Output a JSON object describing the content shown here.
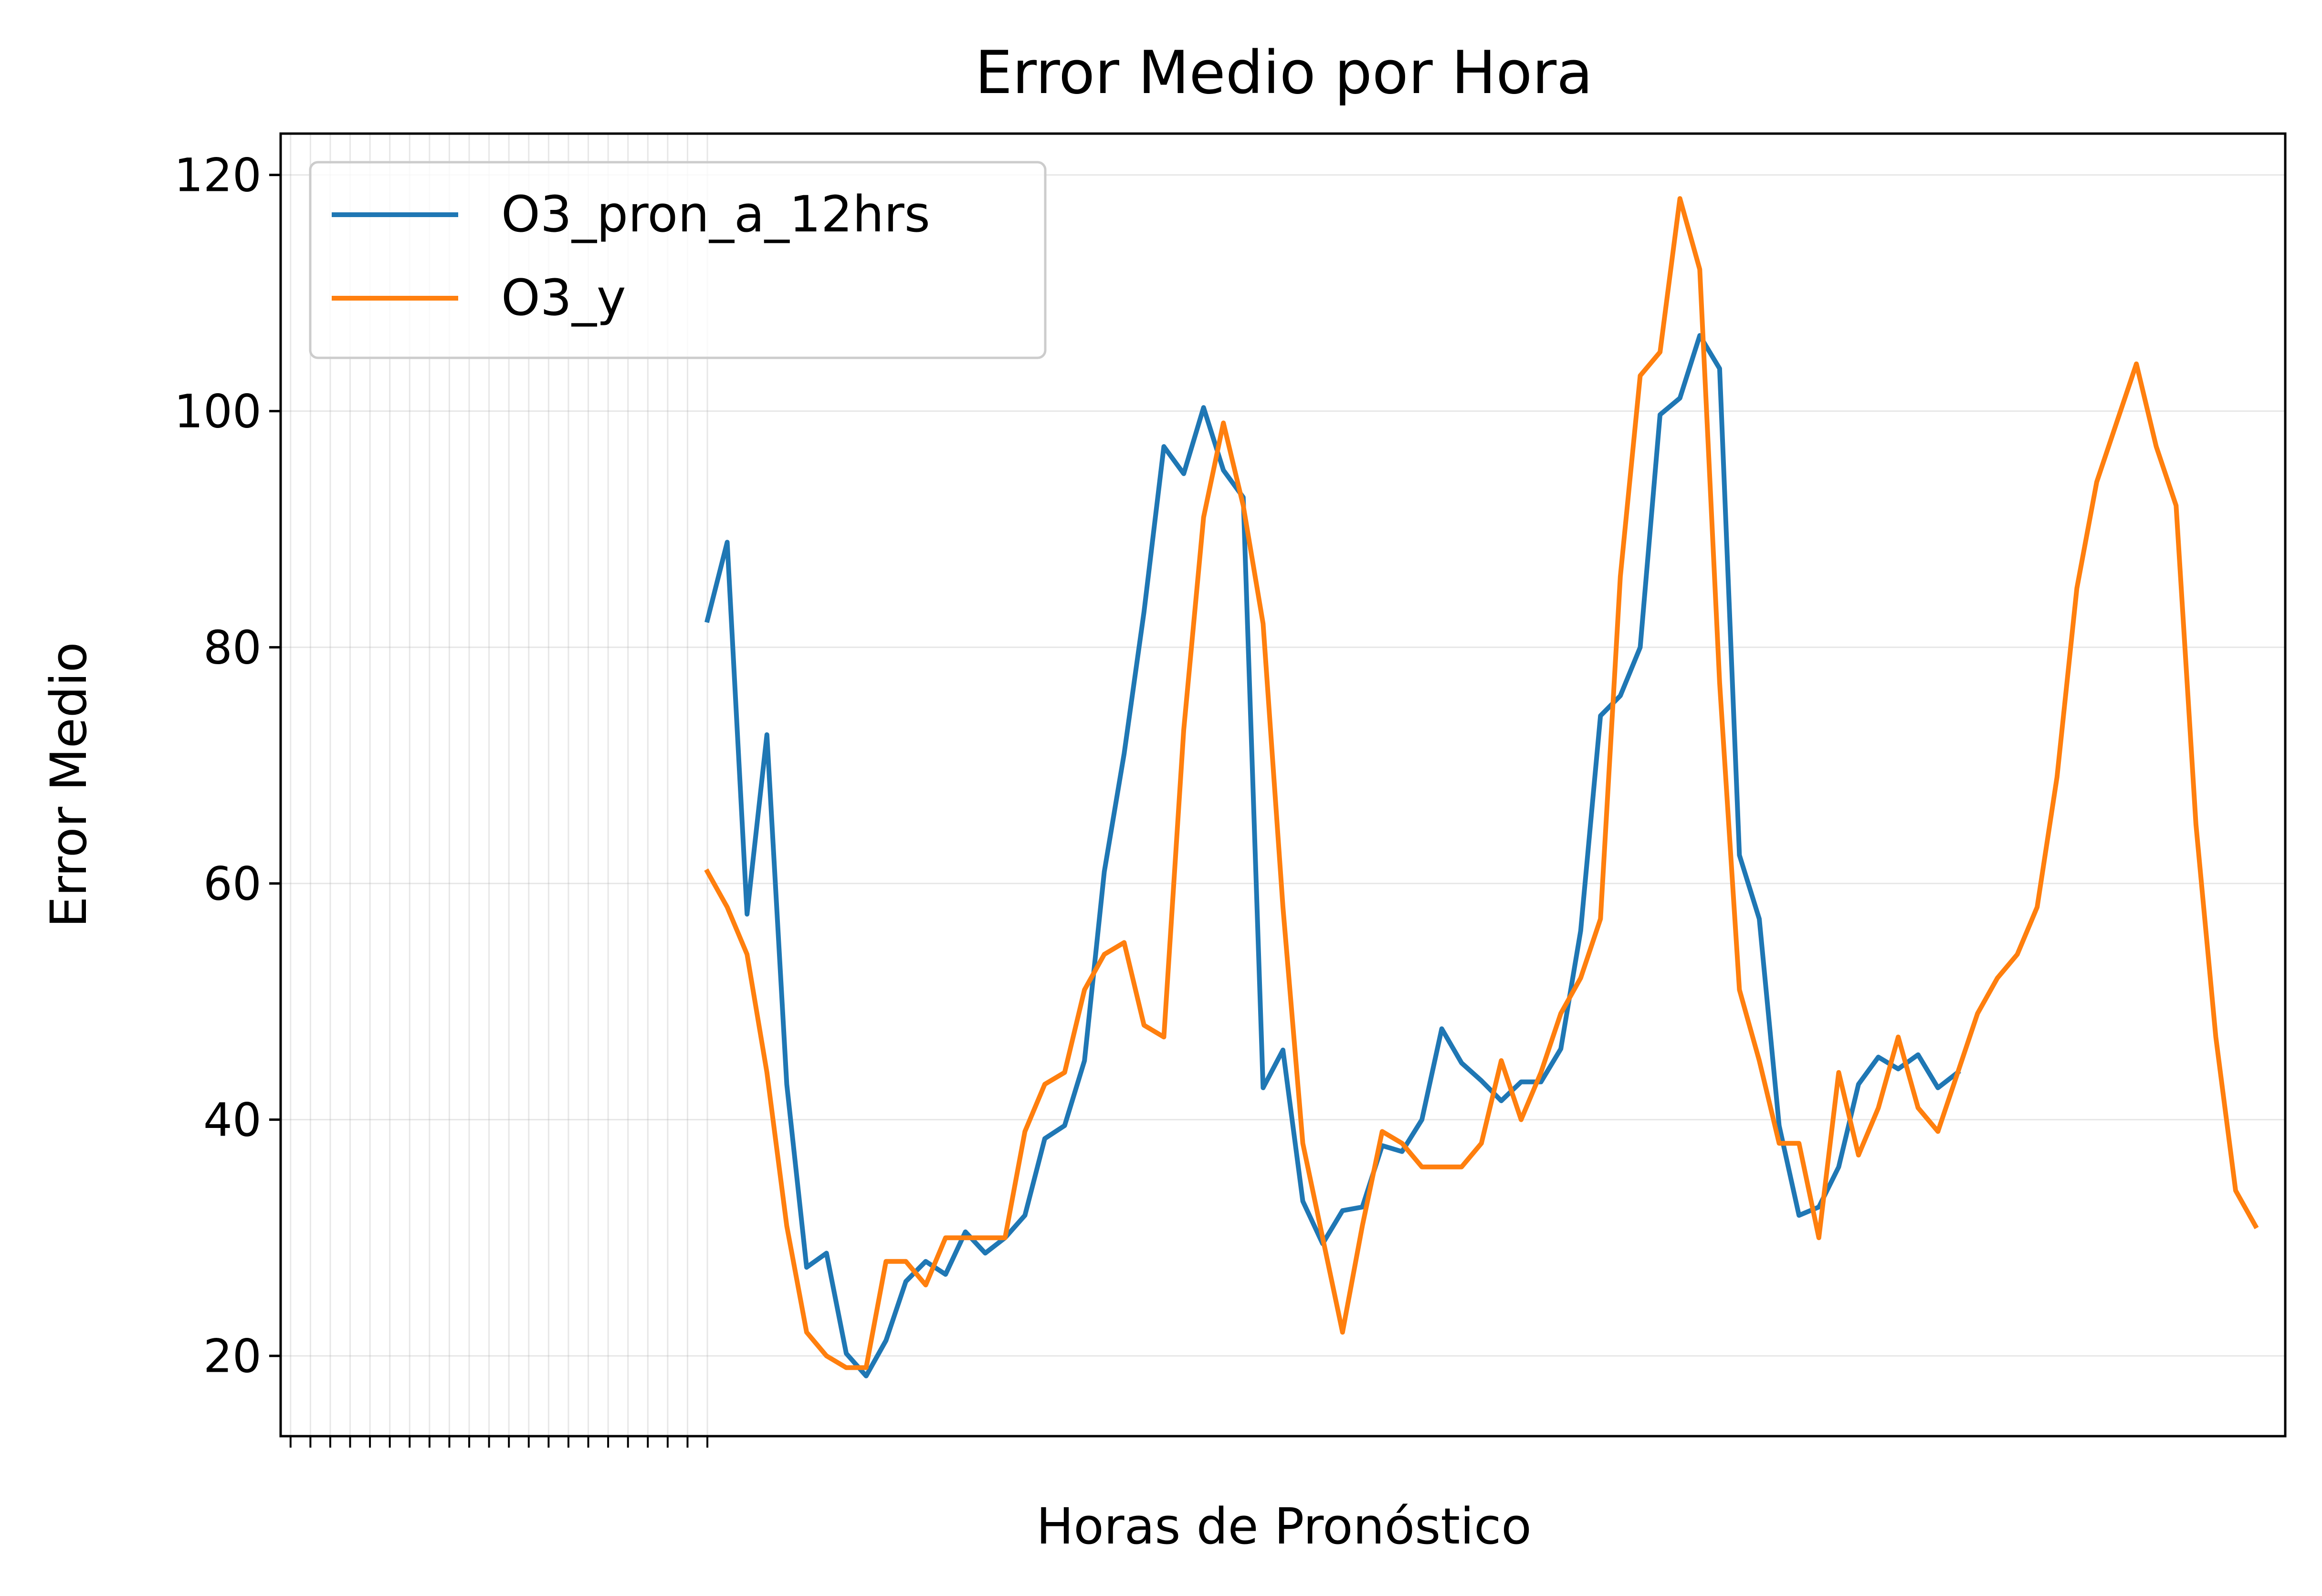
{
  "chart_data": {
    "type": "line",
    "title": "Error Medio por Hora",
    "xlabel": "Horas de Pronóstico",
    "ylabel": "Error Medio",
    "xlim": [
      -21.5,
      79.5
    ],
    "ylim": [
      13.2,
      123.5
    ],
    "yticks": [
      20,
      40,
      60,
      80,
      100,
      120
    ],
    "grid": true,
    "legend_position": "upper-left",
    "series": [
      {
        "name": "O3_pron_a_12hrs",
        "color": "#1f77b4",
        "x": [
          0,
          1,
          2,
          3,
          4,
          5,
          6,
          7,
          8,
          9,
          10,
          11,
          12,
          13,
          14,
          15,
          16,
          17,
          18,
          19,
          20,
          21,
          22,
          23,
          24,
          25,
          26,
          27,
          28,
          29,
          30,
          31,
          32,
          33,
          34,
          35,
          36,
          37,
          38,
          39,
          40,
          41,
          42,
          43,
          44,
          45,
          46,
          47,
          48,
          49,
          50,
          51,
          52,
          53,
          54,
          55,
          56,
          57,
          58,
          59,
          60,
          61,
          62,
          63
        ],
        "y": [
          82.3,
          88.9,
          57.4,
          72.6,
          43,
          27.5,
          28.7,
          20.2,
          18.3,
          21.3,
          26.3,
          28,
          26.9,
          30.5,
          28.7,
          30,
          31.9,
          38.4,
          39.5,
          45,
          61,
          71,
          83,
          97,
          94.7,
          100.3,
          95,
          92.7,
          42.7,
          45.9,
          33.1,
          29.5,
          32.3,
          32.6,
          37.8,
          37.3,
          40,
          47.7,
          44.8,
          43.3,
          41.6,
          43.2,
          43.2,
          46,
          56,
          74.2,
          75.9,
          80,
          99.7,
          101.1,
          106.4,
          103.6,
          62.4,
          57,
          39.5,
          31.9,
          32.6,
          36,
          43,
          45.3,
          44.3,
          45.5,
          42.7,
          44
        ]
      },
      {
        "name": "O3_y",
        "color": "#ff7f0e",
        "x": [
          0,
          1,
          2,
          3,
          4,
          5,
          6,
          7,
          8,
          9,
          10,
          11,
          12,
          13,
          14,
          15,
          16,
          17,
          18,
          19,
          20,
          21,
          22,
          23,
          24,
          25,
          26,
          27,
          28,
          29,
          30,
          31,
          32,
          33,
          34,
          35,
          36,
          37,
          38,
          39,
          40,
          41,
          42,
          43,
          44,
          45,
          46,
          47,
          48,
          49,
          50,
          51,
          52,
          53,
          54,
          55,
          56,
          57,
          58,
          59,
          60,
          61,
          62,
          63,
          64,
          65,
          66,
          67,
          68,
          69,
          70,
          71,
          72,
          73,
          74,
          75,
          76,
          77,
          78,
          79
        ],
        "y": [
          61,
          58,
          54,
          44,
          31,
          22,
          20,
          19,
          19,
          28,
          28,
          26,
          30,
          30,
          30,
          30,
          39,
          43,
          44,
          51,
          54,
          55,
          48,
          47,
          73,
          91,
          99,
          92,
          82,
          58,
          38,
          30,
          22,
          31,
          39,
          38,
          36,
          36,
          36,
          38,
          45,
          40,
          44,
          49,
          52,
          57,
          86,
          103,
          105,
          118,
          112,
          77,
          51,
          45,
          38,
          38,
          30,
          44,
          37,
          41,
          47,
          41,
          39,
          44,
          49,
          52,
          54,
          58,
          69,
          85,
          94,
          99,
          104,
          97,
          92,
          65,
          47,
          34,
          31,
          null
        ]
      }
    ]
  }
}
